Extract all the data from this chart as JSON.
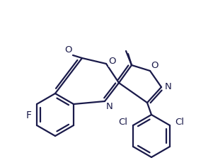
{
  "bg_color": "#ffffff",
  "line_color": "#1a1a4a",
  "line_width": 1.6,
  "font_size": 9.5,
  "figsize": [
    3.01,
    2.33
  ],
  "dpi": 100
}
